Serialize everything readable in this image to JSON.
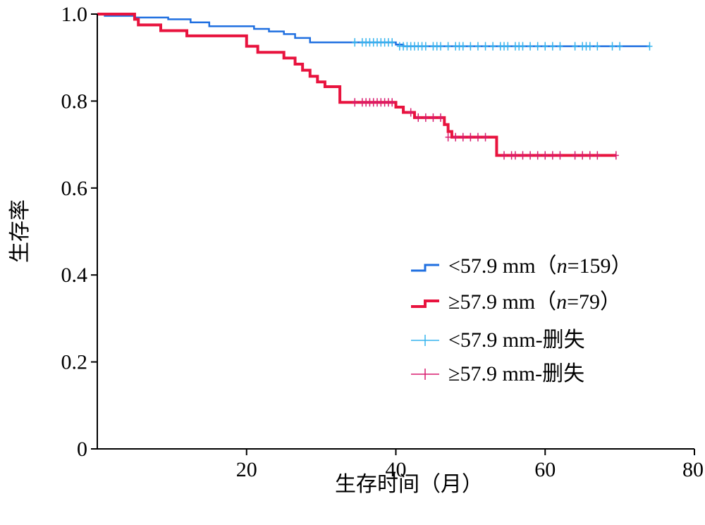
{
  "chart_data": {
    "type": "line",
    "subtype": "kaplan-meier survival curve",
    "xlabel": "生存时间（月）",
    "ylabel": "生存率",
    "xlim": [
      0,
      80
    ],
    "ylim": [
      0,
      1.0
    ],
    "x_ticks": [
      20,
      40,
      60,
      80
    ],
    "x_tick_labels": [
      "20",
      "40",
      "60",
      "80"
    ],
    "y_ticks": [
      0,
      0.2,
      0.4,
      0.6,
      0.8,
      1.0
    ],
    "y_tick_labels": [
      "0",
      "0.2",
      "0.4",
      "0.6",
      "0.8",
      "1.0"
    ],
    "grid": false,
    "legend_position": "right",
    "series": [
      {
        "name": "<57.9 mm（n=159）",
        "color": "#1f6fe0",
        "step_x": [
          0,
          1,
          5,
          9.5,
          12.5,
          15,
          21,
          23,
          25,
          26.5,
          28.5,
          40,
          41,
          74
        ],
        "step_y": [
          1.0,
          0.996,
          0.992,
          0.988,
          0.981,
          0.972,
          0.966,
          0.96,
          0.954,
          0.945,
          0.935,
          0.93,
          0.926,
          0.926
        ]
      },
      {
        "name": "≥57.9 mm（n=79）",
        "color": "#e8133e",
        "step_x": [
          0,
          5,
          5.5,
          8.5,
          12,
          20,
          21.5,
          25,
          26.5,
          27.5,
          28.5,
          29.5,
          30.5,
          32.5,
          40,
          41,
          42.5,
          46.5,
          47,
          47.5,
          53.5,
          69.5
        ],
        "step_y": [
          1.0,
          0.988,
          0.975,
          0.962,
          0.95,
          0.926,
          0.912,
          0.899,
          0.885,
          0.871,
          0.857,
          0.844,
          0.833,
          0.797,
          0.786,
          0.774,
          0.762,
          0.746,
          0.73,
          0.717,
          0.675,
          0.675
        ]
      }
    ],
    "censored": [
      {
        "name": "<57.9 mm-删失",
        "color": "#35b4ee",
        "x": [
          34.5,
          35.5,
          36,
          36.5,
          37,
          37.5,
          38,
          38.5,
          39,
          39.5,
          40.5,
          41,
          41.5,
          42,
          42.5,
          43,
          43.5,
          44,
          45,
          45.5,
          46,
          47,
          48,
          48.5,
          49,
          50,
          51,
          52,
          53,
          54,
          54.5,
          55,
          56,
          56.5,
          57,
          58,
          59,
          60,
          61,
          62,
          64,
          65,
          65.5,
          66,
          67,
          69,
          70,
          74
        ],
        "y": [
          0.935,
          0.935,
          0.935,
          0.935,
          0.935,
          0.935,
          0.935,
          0.935,
          0.935,
          0.935,
          0.926,
          0.926,
          0.926,
          0.926,
          0.926,
          0.926,
          0.926,
          0.926,
          0.926,
          0.926,
          0.926,
          0.926,
          0.926,
          0.926,
          0.926,
          0.926,
          0.926,
          0.926,
          0.926,
          0.926,
          0.926,
          0.926,
          0.926,
          0.926,
          0.926,
          0.926,
          0.926,
          0.926,
          0.926,
          0.926,
          0.926,
          0.926,
          0.926,
          0.926,
          0.926,
          0.926,
          0.926,
          0.926
        ]
      },
      {
        "name": "≥57.9 mm-删失",
        "color": "#d81b6e",
        "x": [
          34.5,
          35.5,
          36,
          36.5,
          37,
          37.5,
          38,
          38.5,
          39,
          39.5,
          42,
          43,
          44,
          45,
          46,
          47,
          48,
          49,
          50,
          51,
          52,
          54.5,
          55.5,
          56,
          57,
          58,
          59,
          60,
          61,
          62,
          64,
          65,
          66,
          67,
          69.5
        ],
        "y": [
          0.797,
          0.797,
          0.797,
          0.797,
          0.797,
          0.797,
          0.797,
          0.797,
          0.797,
          0.797,
          0.774,
          0.762,
          0.762,
          0.762,
          0.762,
          0.717,
          0.717,
          0.717,
          0.717,
          0.717,
          0.717,
          0.675,
          0.675,
          0.675,
          0.675,
          0.675,
          0.675,
          0.675,
          0.675,
          0.675,
          0.675,
          0.675,
          0.675,
          0.675,
          0.675
        ]
      }
    ]
  },
  "legend": {
    "items": [
      {
        "prefix": "<57.9 mm（",
        "n_var": "n",
        "suffix": "=159）"
      },
      {
        "prefix": "≥57.9 mm（",
        "n_var": "n",
        "suffix": "=79）"
      },
      {
        "label": "<57.9 mm-删失"
      },
      {
        "label": "≥57.9 mm-删失"
      }
    ]
  }
}
